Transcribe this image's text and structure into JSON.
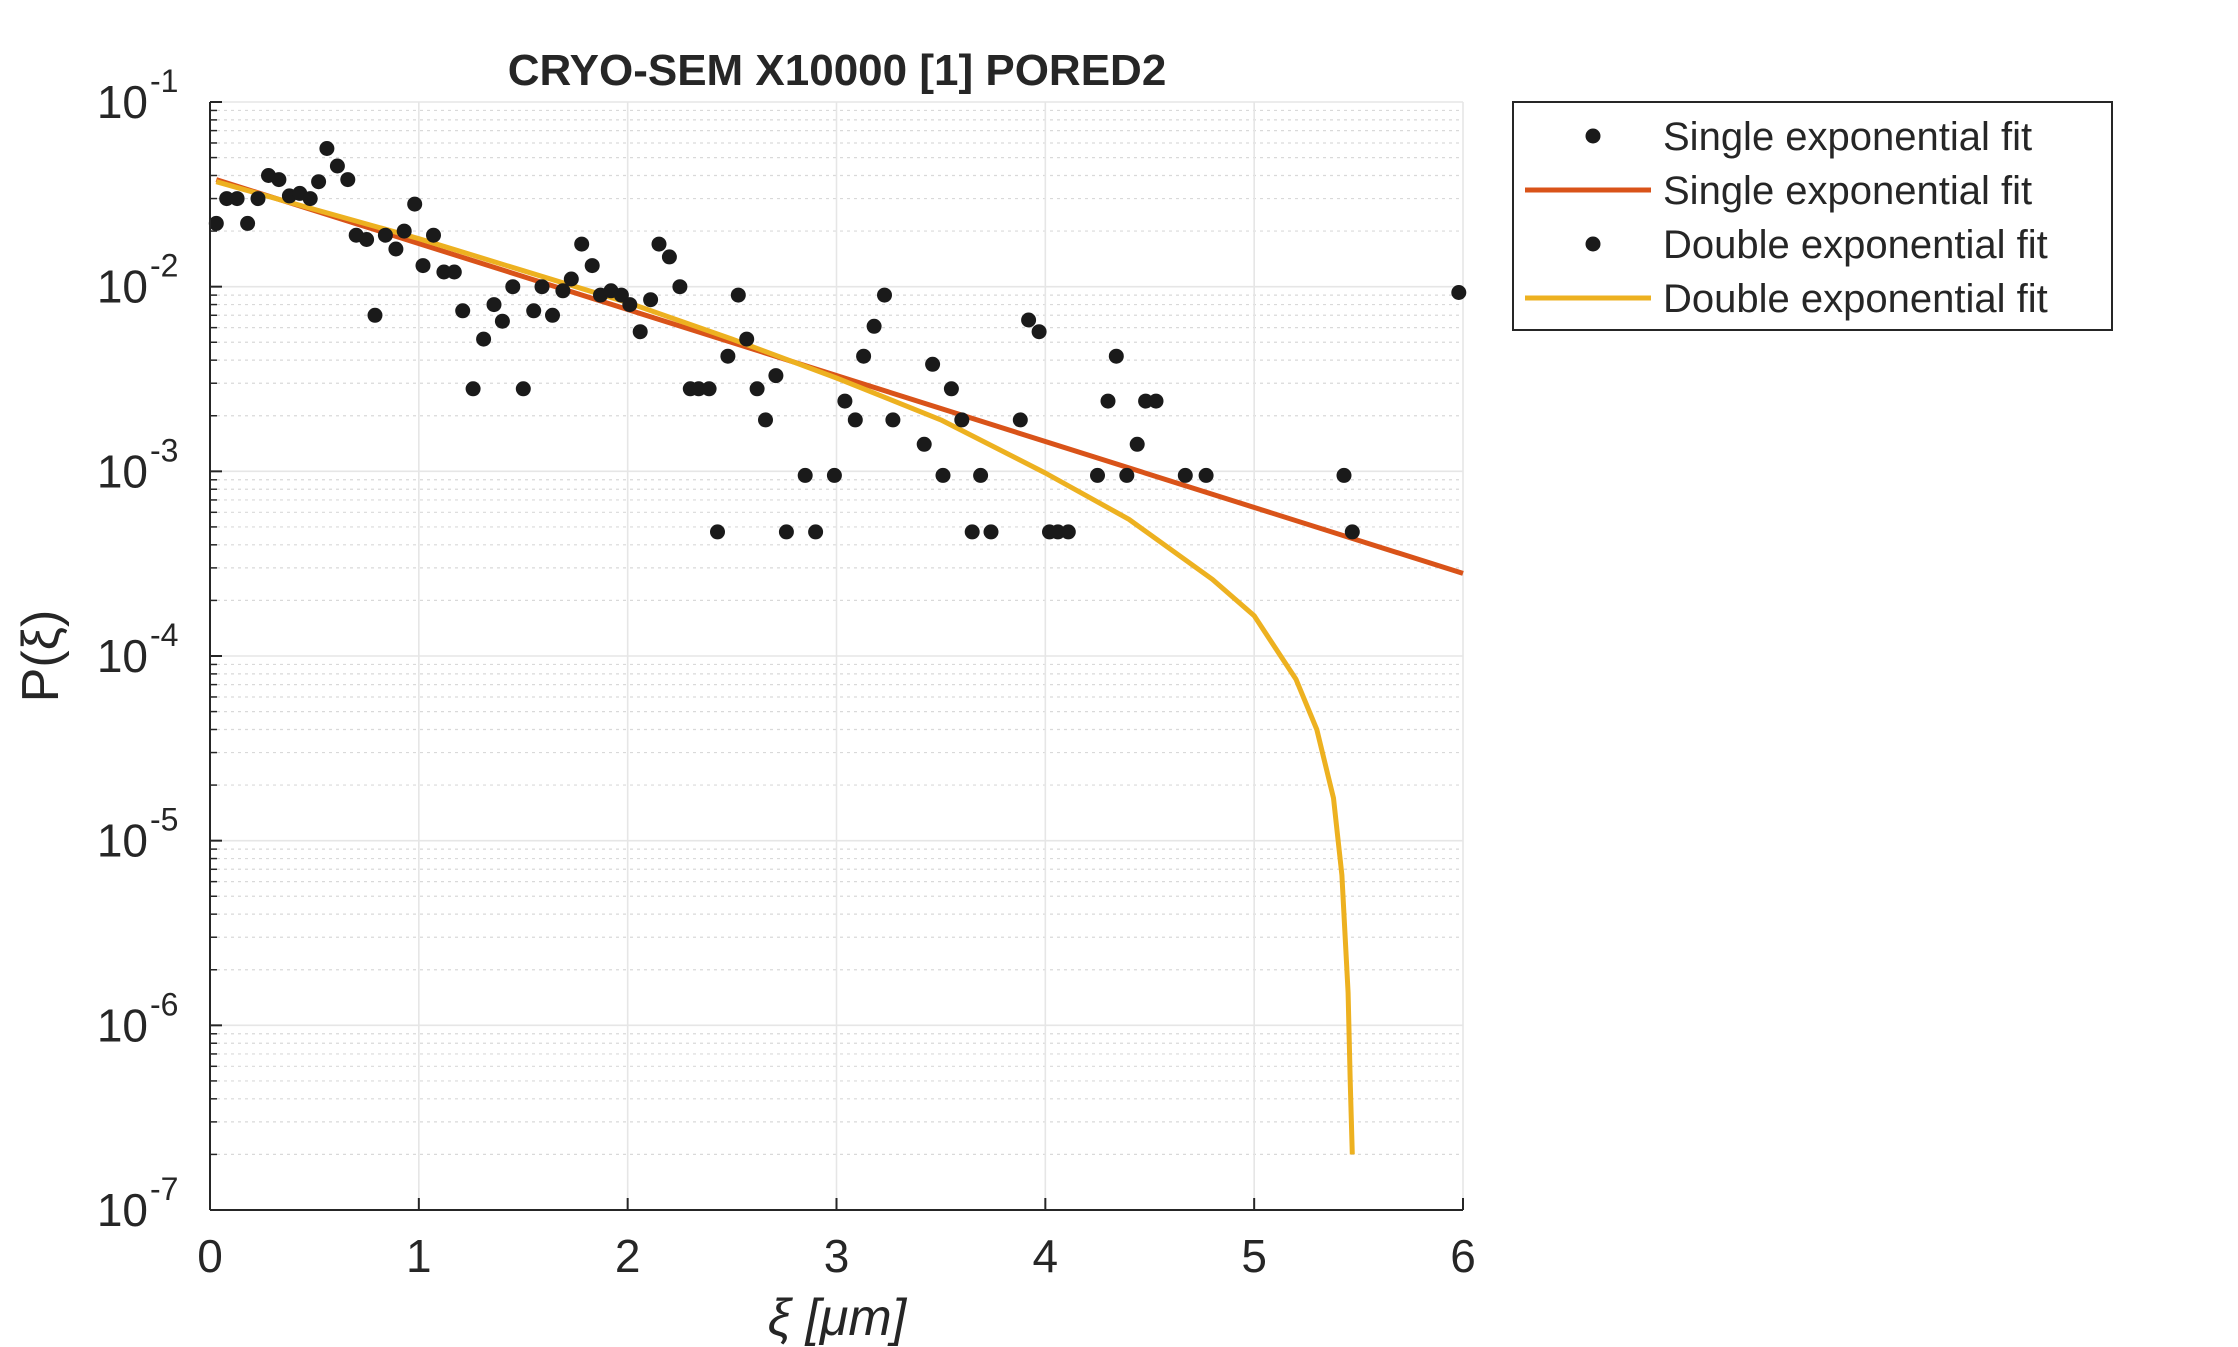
{
  "chart_data": {
    "type": "scatter",
    "title": "CRYO-SEM X10000 [1] PORED2",
    "xlabel": "ξ  [μm]",
    "ylabel": "P(ξ)",
    "xlim": [
      0,
      6
    ],
    "ylim": [
      1e-07,
      0.1
    ],
    "yscale": "log",
    "grid": true,
    "minor_grid": true,
    "legend_position": "outside-top-right",
    "x_ticks": [
      "0",
      "1",
      "2",
      "3",
      "4",
      "5",
      "6"
    ],
    "y_ticks": [
      {
        "base": "10",
        "exp": "-7"
      },
      {
        "base": "10",
        "exp": "-6"
      },
      {
        "base": "10",
        "exp": "-5"
      },
      {
        "base": "10",
        "exp": "-4"
      },
      {
        "base": "10",
        "exp": "-3"
      },
      {
        "base": "10",
        "exp": "-2"
      },
      {
        "base": "10",
        "exp": "-1"
      }
    ],
    "legend": [
      {
        "label": "Single exponential fit",
        "style": "marker",
        "color": "#1a1a1a"
      },
      {
        "label": "Single exponential fit",
        "style": "line",
        "color": "#D95319"
      },
      {
        "label": "Double exponential fit",
        "style": "marker",
        "color": "#1a1a1a"
      },
      {
        "label": "Double exponential fit",
        "style": "line",
        "color": "#EDB120"
      }
    ],
    "colors": {
      "points": "#1a1a1a",
      "single_fit": "#D95319",
      "double_fit": "#EDB120",
      "grid": "#e6e6e6",
      "axis": "#262626"
    },
    "series": [
      {
        "name": "Single exponential fit",
        "kind": "points",
        "points": [
          [
            0.03,
            0.022
          ],
          [
            0.08,
            0.03
          ],
          [
            0.13,
            0.03
          ],
          [
            0.18,
            0.022
          ],
          [
            0.23,
            0.03
          ],
          [
            0.28,
            0.04
          ],
          [
            0.33,
            0.038
          ],
          [
            0.38,
            0.031
          ],
          [
            0.43,
            0.032
          ],
          [
            0.48,
            0.03
          ],
          [
            0.52,
            0.037
          ],
          [
            0.56,
            0.056
          ],
          [
            0.61,
            0.045
          ],
          [
            0.66,
            0.038
          ],
          [
            0.7,
            0.019
          ],
          [
            0.75,
            0.018
          ],
          [
            0.79,
            0.007
          ],
          [
            0.84,
            0.019
          ],
          [
            0.89,
            0.016
          ],
          [
            0.93,
            0.02
          ],
          [
            0.98,
            0.028
          ],
          [
            1.02,
            0.013
          ],
          [
            1.07,
            0.019
          ],
          [
            1.12,
            0.012
          ],
          [
            1.17,
            0.012
          ],
          [
            1.21,
            0.0074
          ],
          [
            1.26,
            0.0028
          ],
          [
            1.31,
            0.0052
          ],
          [
            1.36,
            0.008
          ],
          [
            1.4,
            0.0065
          ],
          [
            1.45,
            0.01
          ],
          [
            1.5,
            0.0028
          ],
          [
            1.55,
            0.0074
          ],
          [
            1.59,
            0.01
          ],
          [
            1.64,
            0.007
          ],
          [
            1.69,
            0.0095
          ],
          [
            1.73,
            0.011
          ],
          [
            1.78,
            0.017
          ],
          [
            1.83,
            0.013
          ],
          [
            1.87,
            0.009
          ],
          [
            1.92,
            0.0095
          ],
          [
            1.97,
            0.009
          ],
          [
            2.01,
            0.008
          ],
          [
            2.06,
            0.0057
          ],
          [
            2.11,
            0.0085
          ],
          [
            2.15,
            0.017
          ],
          [
            2.2,
            0.0145
          ],
          [
            2.25,
            0.01
          ],
          [
            2.3,
            0.0028
          ],
          [
            2.34,
            0.0028
          ],
          [
            2.39,
            0.0028
          ],
          [
            2.43,
            0.00047
          ],
          [
            2.48,
            0.0042
          ],
          [
            2.53,
            0.009
          ],
          [
            2.57,
            0.0052
          ],
          [
            2.62,
            0.0028
          ],
          [
            2.66,
            0.0019
          ],
          [
            2.71,
            0.0033
          ],
          [
            2.76,
            0.00047
          ],
          [
            2.85,
            0.00095
          ],
          [
            2.9,
            0.00047
          ],
          [
            2.99,
            0.00095
          ],
          [
            3.04,
            0.0024
          ],
          [
            3.09,
            0.0019
          ],
          [
            3.13,
            0.0042
          ],
          [
            3.18,
            0.0061
          ],
          [
            3.23,
            0.009
          ],
          [
            3.27,
            0.0019
          ],
          [
            3.42,
            0.0014
          ],
          [
            3.46,
            0.0038
          ],
          [
            3.51,
            0.00095
          ],
          [
            3.55,
            0.0028
          ],
          [
            3.6,
            0.0019
          ],
          [
            3.65,
            0.00047
          ],
          [
            3.69,
            0.00095
          ],
          [
            3.74,
            0.00047
          ],
          [
            3.88,
            0.0019
          ],
          [
            3.92,
            0.0066
          ],
          [
            3.97,
            0.0057
          ],
          [
            4.02,
            0.00047
          ],
          [
            4.06,
            0.00047
          ],
          [
            4.11,
            0.00047
          ],
          [
            4.25,
            0.00095
          ],
          [
            4.3,
            0.0024
          ],
          [
            4.34,
            0.0042
          ],
          [
            4.39,
            0.00095
          ],
          [
            4.44,
            0.0014
          ],
          [
            4.48,
            0.0024
          ],
          [
            4.53,
            0.0024
          ],
          [
            4.67,
            0.00095
          ],
          [
            4.77,
            0.00095
          ],
          [
            5.43,
            0.00095
          ],
          [
            5.47,
            0.00047
          ],
          [
            5.98,
            0.0093
          ]
        ]
      },
      {
        "name": "Single exponential fit",
        "kind": "line",
        "points": [
          [
            0.03,
            0.038
          ],
          [
            6.0,
            0.00028
          ]
        ]
      },
      {
        "name": "Double exponential fit",
        "kind": "line",
        "points": [
          [
            0.03,
            0.037
          ],
          [
            0.5,
            0.0262
          ],
          [
            1.0,
            0.0182
          ],
          [
            1.5,
            0.0122
          ],
          [
            2.0,
            0.0082
          ],
          [
            2.5,
            0.0052
          ],
          [
            3.0,
            0.0032
          ],
          [
            3.5,
            0.0019
          ],
          [
            4.0,
            0.00098
          ],
          [
            4.4,
            0.00055
          ],
          [
            4.8,
            0.00026
          ],
          [
            5.0,
            0.000165
          ],
          [
            5.2,
            7.5e-05
          ],
          [
            5.3,
            4e-05
          ],
          [
            5.38,
            1.7e-05
          ],
          [
            5.42,
            6.5e-06
          ],
          [
            5.45,
            1.5e-06
          ],
          [
            5.46,
            5e-07
          ],
          [
            5.47,
            2e-07
          ]
        ]
      }
    ]
  }
}
